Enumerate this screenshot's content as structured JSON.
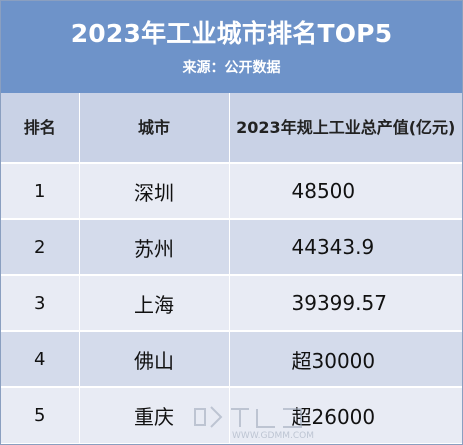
{
  "header": {
    "title": "2023年工业城市排名TOP5",
    "source": "来源：公开数据"
  },
  "table": {
    "columns": [
      "排名",
      "城市",
      "2023年规上工业总产值(亿元)"
    ],
    "rows": [
      {
        "rank": "1",
        "city": "深圳",
        "value": "48500"
      },
      {
        "rank": "2",
        "city": "苏州",
        "value": "44343.9"
      },
      {
        "rank": "3",
        "city": "上海",
        "value": "39399.57"
      },
      {
        "rank": "4",
        "city": "佛山",
        "value": "超30000"
      },
      {
        "rank": "5",
        "city": "重庆",
        "value": "超26000"
      }
    ]
  },
  "watermark": {
    "icon": "gdmm-logo-icon",
    "text": "WWW.GDMM.COM"
  },
  "colors": {
    "header_bg": "#6e93c9",
    "column_header_bg": "#c9d2e6",
    "row_odd_bg": "#e8ebf4",
    "row_even_bg": "#d4dbeb"
  }
}
